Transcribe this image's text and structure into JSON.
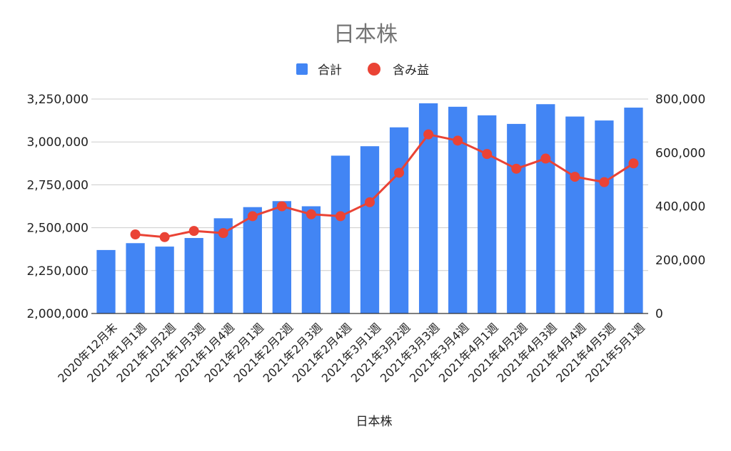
{
  "chart_data": {
    "type": "bar",
    "title": "日本株",
    "xlabel": "日本株",
    "ylabel": "",
    "y2label": "",
    "categories": [
      "2020年12月末",
      "2021年1月1週",
      "2021年1月2週",
      "2021年1月3週",
      "2021年1月4週",
      "2021年2月1週",
      "2021年2月2週",
      "2021年2月3週",
      "2021年2月4週",
      "2021年3月1週",
      "2021年3月2週",
      "2021年3月3週",
      "2021年3月4週",
      "2021年4月1週",
      "2021年4月2週",
      "2021年4月3週",
      "2021年4月4週",
      "2021年4月5週",
      "2021年5月1週"
    ],
    "series": [
      {
        "name": "合計",
        "type": "bar",
        "axis": "left",
        "color": "#4285f4",
        "values": [
          2370000,
          2410000,
          2390000,
          2440000,
          2555000,
          2620000,
          2655000,
          2625000,
          2920000,
          2975000,
          3085000,
          3225000,
          3205000,
          3155000,
          3105000,
          3220000,
          3148000,
          3125000,
          3200000
        ]
      },
      {
        "name": "含み益",
        "type": "line",
        "axis": "right",
        "color": "#ea4335",
        "values": [
          null,
          295000,
          285000,
          308000,
          300000,
          363000,
          400000,
          370000,
          363000,
          415000,
          525000,
          668000,
          645000,
          595000,
          540000,
          578000,
          510000,
          490000,
          560000
        ]
      }
    ],
    "ylim": [
      2000000,
      3250000
    ],
    "y2lim": [
      0,
      800000
    ],
    "yticks": [
      "2,000,000",
      "2,250,000",
      "2,500,000",
      "2,750,000",
      "3,000,000",
      "3,250,000"
    ],
    "y2ticks": [
      "0",
      "200,000",
      "400,000",
      "600,000",
      "800,000"
    ],
    "grid": true,
    "legend": "top-center"
  }
}
